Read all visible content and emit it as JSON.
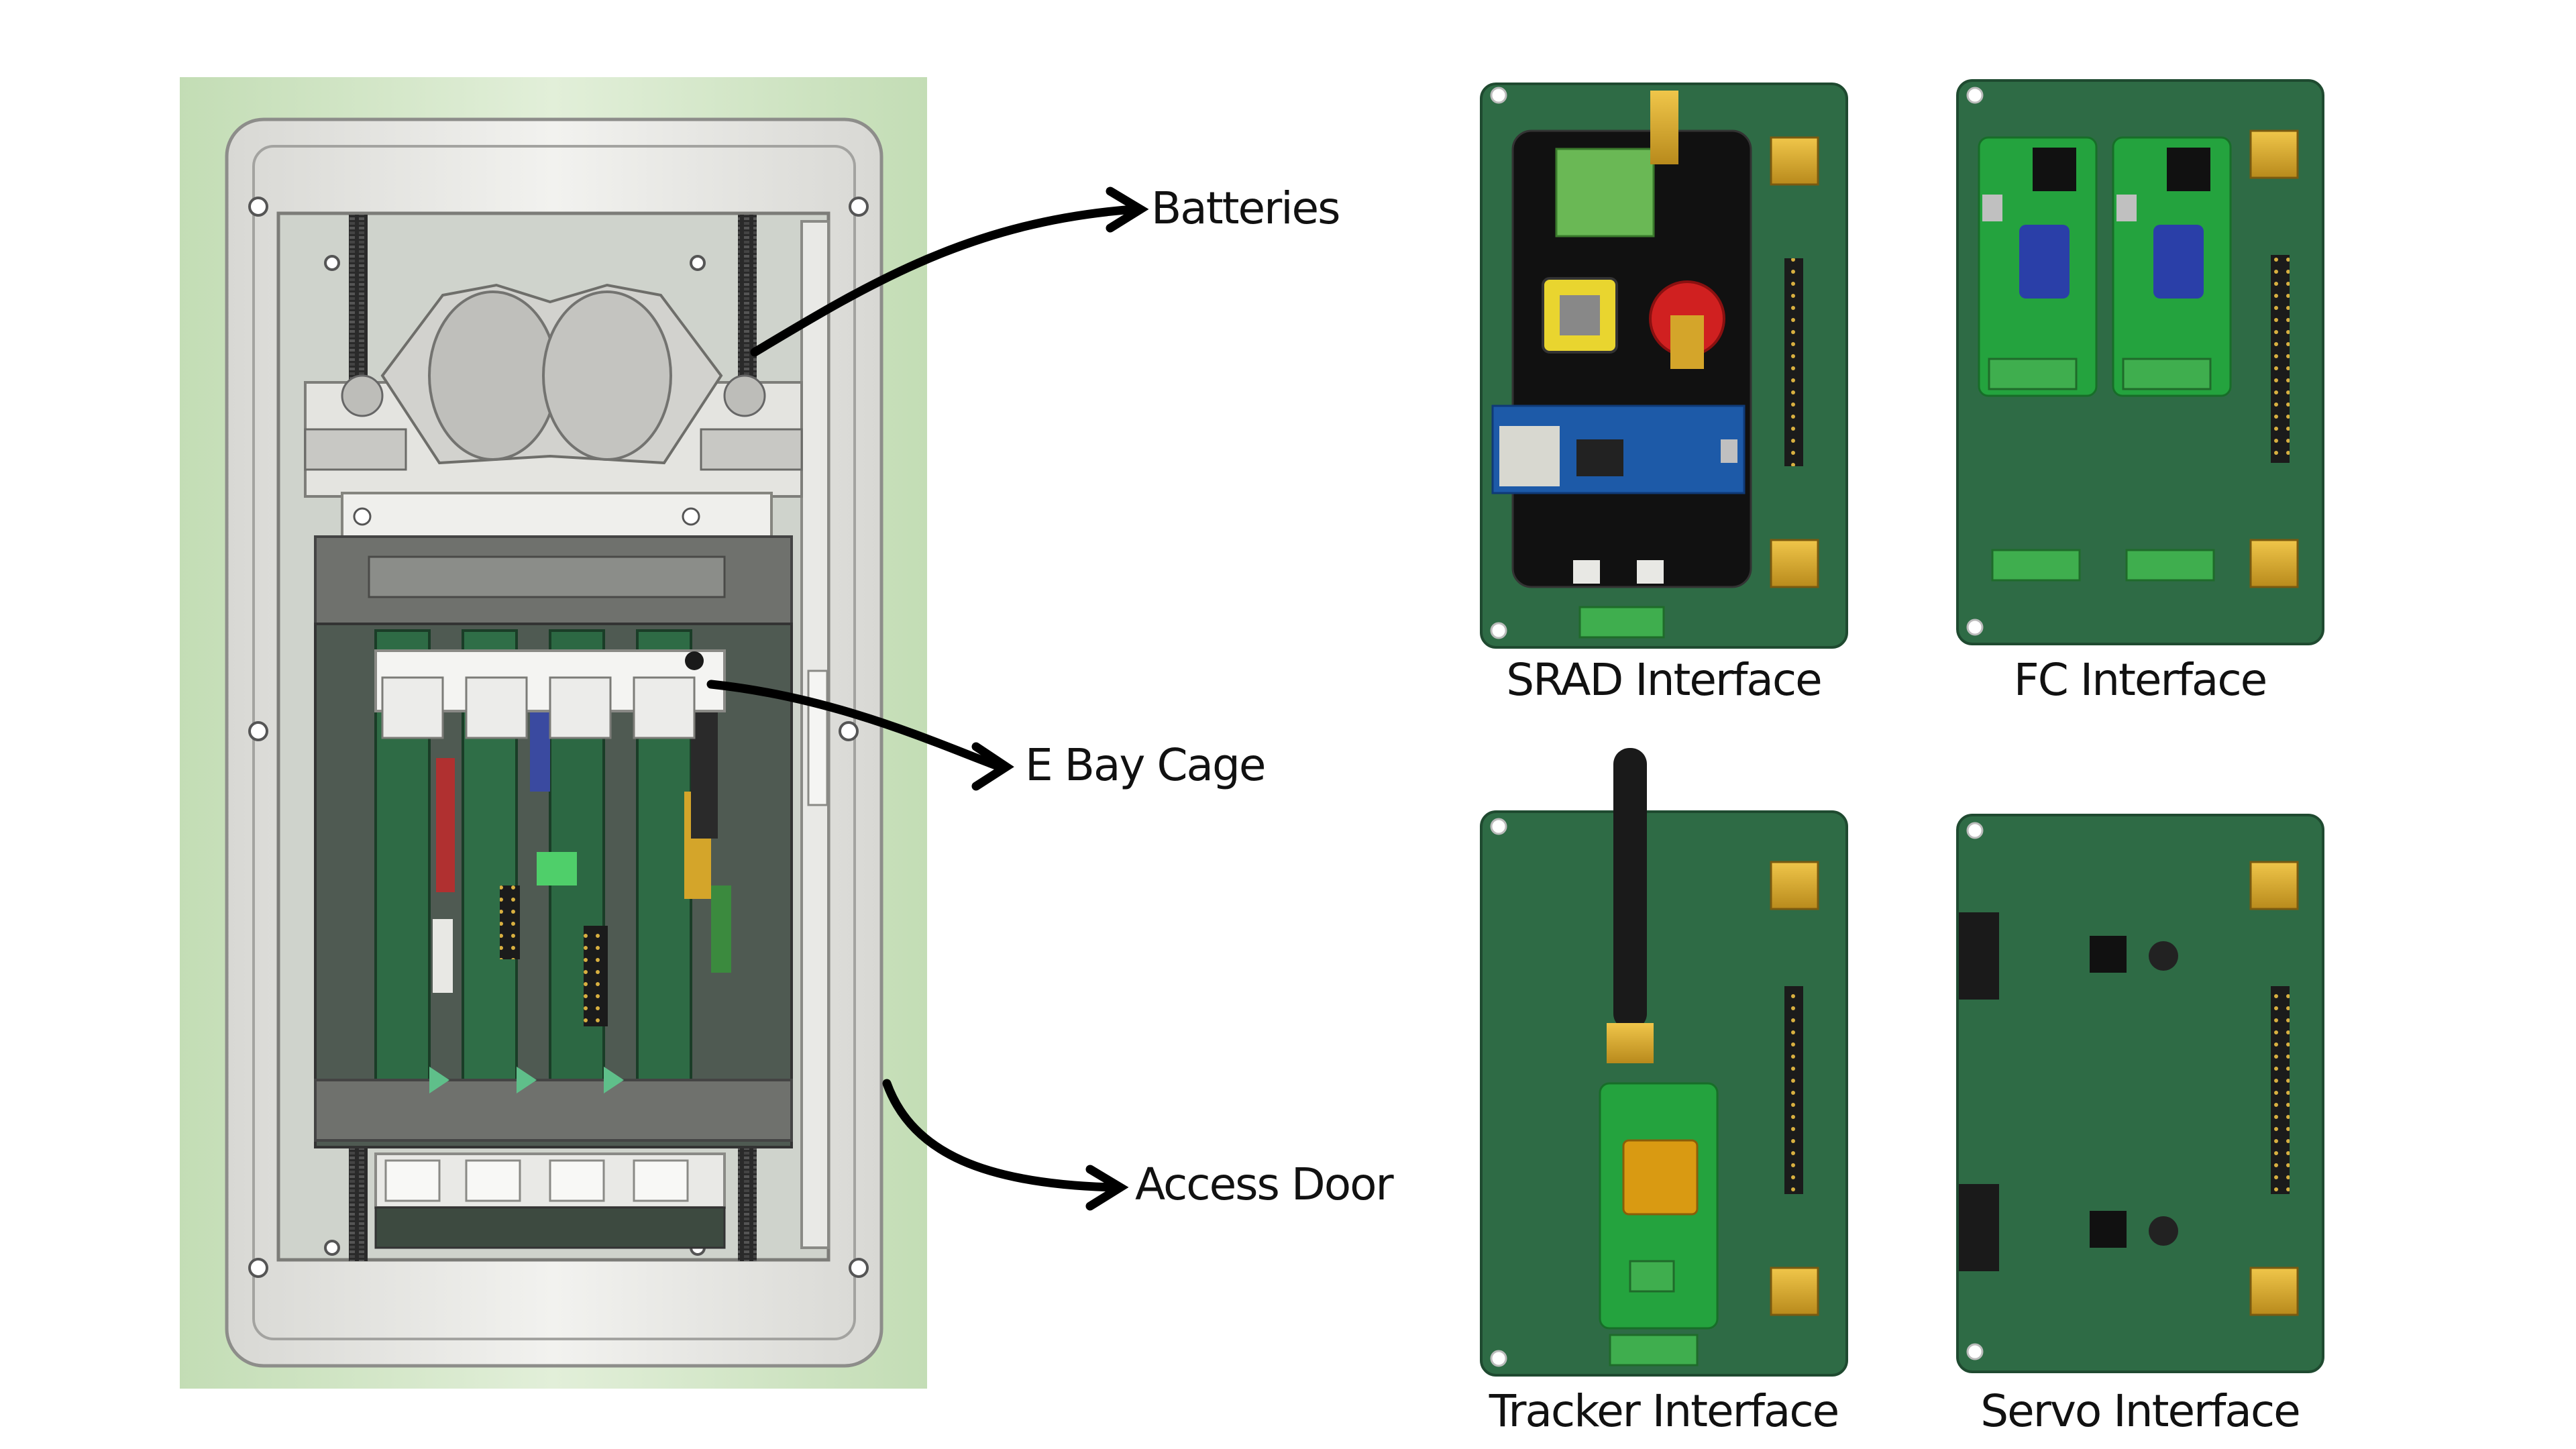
{
  "callouts": {
    "batteries": "Batteries",
    "ebay_cage": "E Bay Cage",
    "access_door": "Access Door"
  },
  "boards": {
    "srad": {
      "title": "SRAD Interface"
    },
    "fc": {
      "title": "FC Interface"
    },
    "tracker": {
      "title": "Tracker Interface"
    },
    "servo": {
      "title": "Servo Interface"
    }
  },
  "colors": {
    "pcb_green": "#2e6b45",
    "pcb_dark": "#1f4a30",
    "background_tint": "#c6e0b8",
    "connector_gold": "#d4a52a",
    "frame_grey": "#e6e6e2",
    "arrow": "#000000"
  }
}
